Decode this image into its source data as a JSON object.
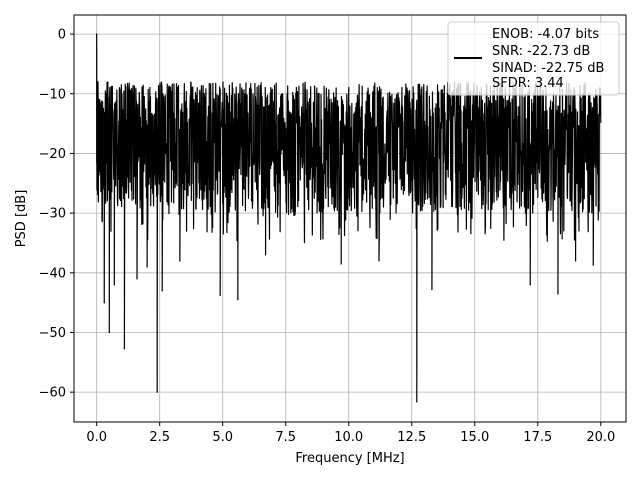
{
  "chart_data": {
    "type": "line",
    "title": "",
    "xlabel": "Frequency [MHz]",
    "ylabel": "PSD [dB]",
    "xlim": [
      -0.9,
      21.0
    ],
    "ylim": [
      -65,
      3.2
    ],
    "xticks": [
      0.0,
      2.5,
      5.0,
      7.5,
      10.0,
      12.5,
      15.0,
      17.5,
      20.0
    ],
    "xtick_labels": [
      "0.0",
      "2.5",
      "5.0",
      "7.5",
      "10.0",
      "12.5",
      "15.0",
      "17.5",
      "20.0"
    ],
    "yticks": [
      0,
      -10,
      -20,
      -30,
      -40,
      -50,
      -60
    ],
    "ytick_labels": [
      "0",
      "−10",
      "−20",
      "−30",
      "−40",
      "−50",
      "−60"
    ],
    "grid": true,
    "legend_position": "top-right",
    "legend_lines": [
      "ENOB: -4.07 bits",
      "SNR: -22.73 dB",
      "SINAD: -22.75 dB",
      "SFDR: 3.44"
    ],
    "series": [
      {
        "color": "#000000",
        "x_range": [
          0.0,
          20.0
        ],
        "noise_floor_mean_db": -18,
        "noise_band_db": [
          -30,
          -8
        ],
        "peaks": [
          {
            "x": 0.0,
            "y": 0.0
          },
          {
            "x": 0.05,
            "y": -8.0
          }
        ],
        "dips": [
          {
            "x": 0.3,
            "y": -45.0
          },
          {
            "x": 0.5,
            "y": -50.0
          },
          {
            "x": 0.7,
            "y": -42.0
          },
          {
            "x": 1.1,
            "y": -52.7
          },
          {
            "x": 1.6,
            "y": -41.0
          },
          {
            "x": 2.0,
            "y": -39.0
          },
          {
            "x": 2.4,
            "y": -60.0
          },
          {
            "x": 2.6,
            "y": -43.0
          },
          {
            "x": 3.3,
            "y": -38.0
          },
          {
            "x": 4.9,
            "y": -43.8
          },
          {
            "x": 5.6,
            "y": -44.5
          },
          {
            "x": 6.7,
            "y": -37.0
          },
          {
            "x": 9.7,
            "y": -38.5
          },
          {
            "x": 11.2,
            "y": -38.0
          },
          {
            "x": 12.7,
            "y": -61.6
          },
          {
            "x": 13.3,
            "y": -42.8
          },
          {
            "x": 17.2,
            "y": -42.0
          },
          {
            "x": 18.3,
            "y": -43.5
          },
          {
            "x": 19.0,
            "y": -38.0
          },
          {
            "x": 19.7,
            "y": -38.7
          }
        ]
      }
    ]
  }
}
